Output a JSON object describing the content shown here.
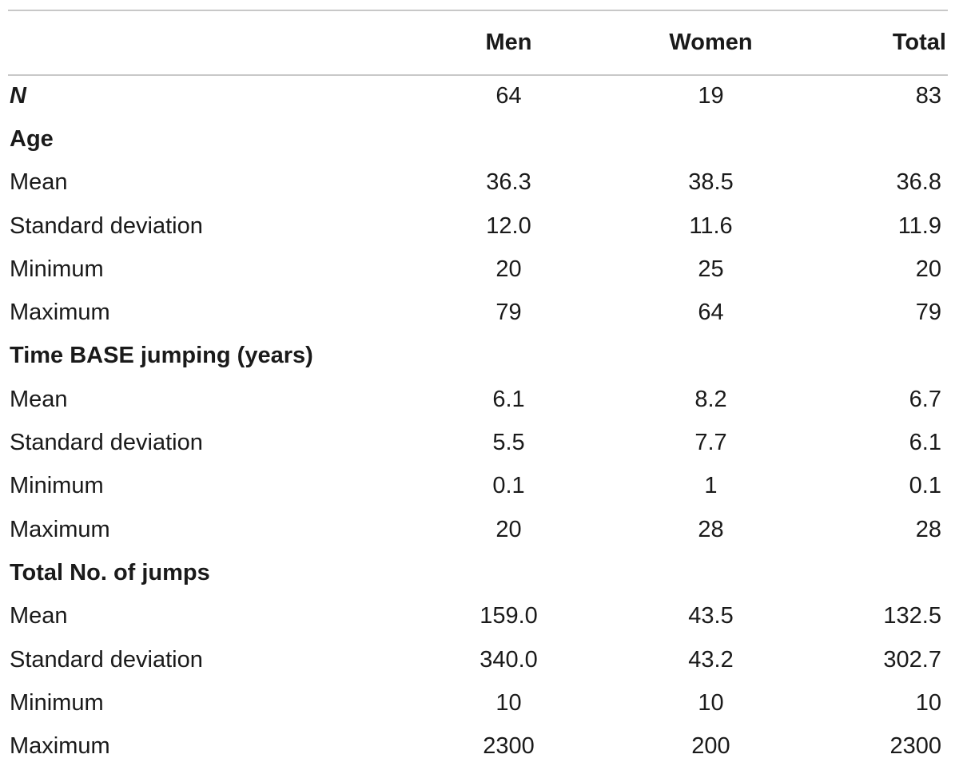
{
  "header": {
    "col_label": "",
    "col_men": "Men",
    "col_women": "Women",
    "col_total": "Total"
  },
  "rows": [
    {
      "type": "n",
      "label": "N",
      "men": "64",
      "women": "19",
      "total": "83"
    },
    {
      "type": "section",
      "label": "Age",
      "men": "",
      "women": "",
      "total": ""
    },
    {
      "type": "data",
      "label": "Mean",
      "men": "36.3",
      "women": "38.5",
      "total": "36.8"
    },
    {
      "type": "data",
      "label": "Standard deviation",
      "men": "12.0",
      "women": "11.6",
      "total": "11.9"
    },
    {
      "type": "data",
      "label": "Minimum",
      "men": "20",
      "women": "25",
      "total": "20"
    },
    {
      "type": "data",
      "label": "Maximum",
      "men": "79",
      "women": "64",
      "total": "79"
    },
    {
      "type": "section",
      "label": "Time BASE jumping (years)",
      "men": "",
      "women": "",
      "total": ""
    },
    {
      "type": "data",
      "label": "Mean",
      "men": "6.1",
      "women": "8.2",
      "total": "6.7"
    },
    {
      "type": "data",
      "label": "Standard deviation",
      "men": "5.5",
      "women": "7.7",
      "total": "6.1"
    },
    {
      "type": "data",
      "label": "Minimum",
      "men": "0.1",
      "women": "1",
      "total": "0.1"
    },
    {
      "type": "data",
      "label": "Maximum",
      "men": "20",
      "women": "28",
      "total": "28"
    },
    {
      "type": "section",
      "label": "Total No. of jumps",
      "men": "",
      "women": "",
      "total": ""
    },
    {
      "type": "data",
      "label": "Mean",
      "men": "159.0",
      "women": "43.5",
      "total": "132.5"
    },
    {
      "type": "data",
      "label": "Standard deviation",
      "men": "340.0",
      "women": "43.2",
      "total": "302.7"
    },
    {
      "type": "data",
      "label": "Minimum",
      "men": "10",
      "women": "10",
      "total": "10"
    },
    {
      "type": "data",
      "label": "Maximum",
      "men": "2300",
      "women": "200",
      "total": "2300"
    }
  ]
}
